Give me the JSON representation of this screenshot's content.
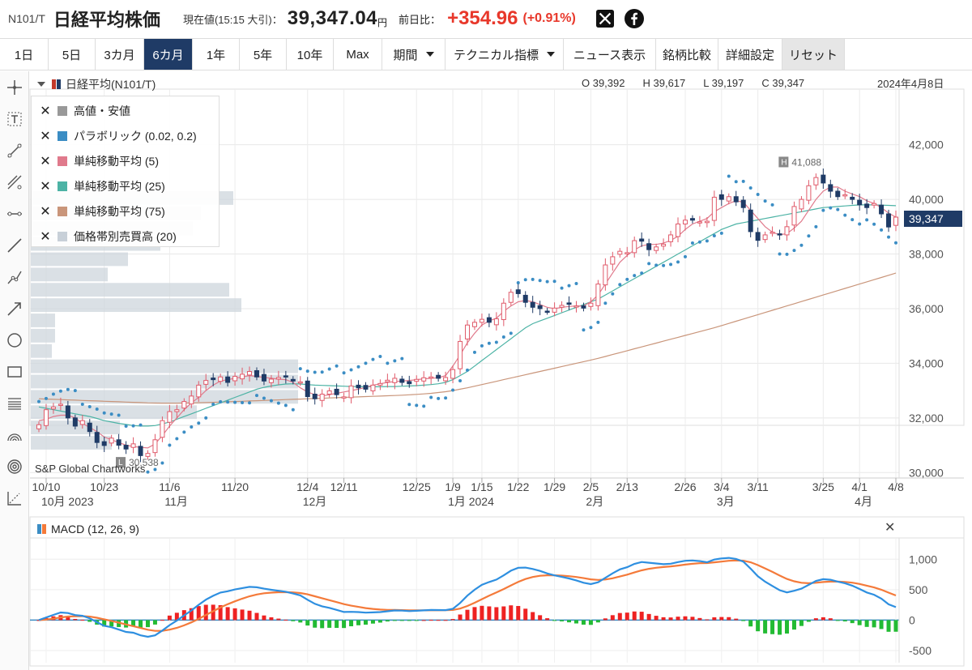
{
  "header": {
    "symbol": "N101/T",
    "title": "日経平均株価",
    "now_label": "現在値(15:15 大引)：",
    "price": "39,347.04",
    "unit": "円",
    "prev_label": "前日比：",
    "change": "+354.96",
    "change_pct": "(+0.91%)",
    "social": [
      "x-logo-icon",
      "facebook-icon"
    ]
  },
  "toolbar": {
    "ranges": [
      "1日",
      "5日",
      "3カ月",
      "6カ月",
      "1年",
      "5年",
      "10年",
      "Max"
    ],
    "active_range": "6カ月",
    "period_label": "期間",
    "tech_label": "テクニカル指標",
    "news_label": "ニュース表示",
    "compare_label": "銘柄比較",
    "settings_label": "詳細設定",
    "reset_label": "リセット"
  },
  "tools": [
    "crosshair-icon",
    "text-tool-icon",
    "trend-line-icon",
    "multi-line-icon",
    "horizontal-line-icon",
    "line-segment-icon",
    "polyline-icon",
    "arrow-icon",
    "circle-icon",
    "rectangle-icon",
    "fibonacci-icon",
    "arc-icon",
    "target-icon",
    "scale-icon"
  ],
  "main_chart": {
    "series_title": "日経平均(N101/T)",
    "ohlc": {
      "o": "O 39,392",
      "h": "H 39,617",
      "l": "L 39,197",
      "c": "C 39,347"
    },
    "date": "2024年4月8日",
    "watermark": "S&P Global Chartworks",
    "current_price_tag": "39,347",
    "high_marker": "41,088",
    "low_marker": "30,538",
    "legend": [
      {
        "label": "高値・安値",
        "color": "#999999"
      },
      {
        "label": "パラボリック (0.02, 0.2)",
        "color": "#3b8dc4"
      },
      {
        "label": "単純移動平均 (5)",
        "color": "#e07a8c"
      },
      {
        "label": "単純移動平均 (25)",
        "color": "#4cb3a5"
      },
      {
        "label": "単純移動平均 (75)",
        "color": "#c9957a"
      },
      {
        "label": "価格帯別売買高 (20)",
        "color": "#c8d0d8"
      }
    ]
  },
  "macd": {
    "title": "MACD (12, 26, 9)",
    "close_icon": "close-icon"
  },
  "chart_data": [
    {
      "type": "candlestick",
      "title": "日経平均(N101/T)",
      "y_ticks": [
        "30,000",
        "32,000",
        "34,000",
        "36,000",
        "38,000",
        "40,000",
        "42,000"
      ],
      "ylim": [
        29800,
        43800
      ],
      "x_ticks": [
        {
          "label": "10/10",
          "i": 1
        },
        {
          "label": "10/23",
          "i": 9
        },
        {
          "label": "11/6",
          "i": 18
        },
        {
          "label": "11/20",
          "i": 27
        },
        {
          "label": "12/4",
          "i": 37
        },
        {
          "label": "12/11",
          "i": 42
        },
        {
          "label": "12/25",
          "i": 52
        },
        {
          "label": "1/9",
          "i": 57
        },
        {
          "label": "1/15",
          "i": 61
        },
        {
          "label": "1/22",
          "i": 66
        },
        {
          "label": "1/29",
          "i": 71
        },
        {
          "label": "2/5",
          "i": 76
        },
        {
          "label": "2/13",
          "i": 81
        },
        {
          "label": "2/26",
          "i": 89
        },
        {
          "label": "3/4",
          "i": 94
        },
        {
          "label": "3/11",
          "i": 99
        },
        {
          "label": "3/25",
          "i": 108
        },
        {
          "label": "4/1",
          "i": 113
        },
        {
          "label": "4/8",
          "i": 118
        }
      ],
      "month_labels": [
        {
          "label": "10月 2023",
          "i": 1
        },
        {
          "label": "11月",
          "i": 18
        },
        {
          "label": "12月",
          "i": 37
        },
        {
          "label": "1月 2024",
          "i": 57
        },
        {
          "label": "2月",
          "i": 76
        },
        {
          "label": "3月",
          "i": 94
        },
        {
          "label": "4月",
          "i": 113
        }
      ],
      "close": [
        31750,
        32300,
        32400,
        32500,
        32000,
        31700,
        31900,
        31500,
        31100,
        30990,
        31260,
        31000,
        30860,
        31050,
        30620,
        30700,
        31200,
        31900,
        32230,
        32300,
        32600,
        32800,
        33200,
        33370,
        33400,
        33500,
        33300,
        33520,
        33600,
        33700,
        33500,
        33350,
        33420,
        33480,
        33500,
        33350,
        33320,
        32780,
        32700,
        32870,
        32990,
        32850,
        32770,
        33170,
        33100,
        33050,
        33200,
        33260,
        33380,
        33450,
        33300,
        33250,
        33410,
        33470,
        33500,
        33450,
        33480,
        33770,
        34800,
        35400,
        35500,
        35610,
        35500,
        35630,
        36200,
        36600,
        36550,
        36230,
        36050,
        36000,
        35900,
        36020,
        36120,
        36160,
        36100,
        36020,
        36200,
        36900,
        37600,
        37900,
        38100,
        38050,
        38490,
        38470,
        38160,
        38260,
        38360,
        38700,
        39100,
        39240,
        39240,
        39180,
        39200,
        40080,
        40000,
        40100,
        39910,
        39700,
        38820,
        38500,
        38700,
        38800,
        38700,
        39000,
        39740,
        40000,
        40500,
        40800,
        40600,
        40300,
        40100,
        40170,
        40000,
        39800,
        39700,
        39850,
        39470,
        38990,
        39350
      ],
      "ma5_approx": [
        31900,
        31950,
        32050,
        32100,
        32100,
        32000,
        31800,
        31650,
        31500,
        31300,
        31200,
        31100,
        31000,
        30950,
        30920,
        30900,
        31050,
        31350,
        31700,
        32000,
        32300,
        32550,
        32750,
        33000,
        33200,
        33350,
        33400,
        33450,
        33500,
        33550,
        33520,
        33480,
        33450,
        33420,
        33400,
        33300,
        33100,
        32950,
        32850,
        32800,
        32850,
        32900,
        32950,
        33000,
        33050,
        33120,
        33200,
        33250,
        33300,
        33330,
        33350,
        33370,
        33400,
        33430,
        33450,
        33470,
        33550,
        33900,
        34300,
        34750,
        35100,
        35400,
        35550,
        35650,
        35900,
        36100,
        36250,
        36300,
        36250,
        36150,
        36050,
        36000,
        36050,
        36080,
        36100,
        36100,
        36250,
        36500,
        36900,
        37300,
        37700,
        37950,
        38150,
        38300,
        38350,
        38350,
        38400,
        38500,
        38650,
        38900,
        39100,
        39200,
        39300,
        39550,
        39700,
        39850,
        39950,
        39900,
        39600,
        39300,
        39000,
        38800,
        38700,
        38750,
        38950,
        39200,
        39600,
        40000,
        40300,
        40450,
        40450,
        40300,
        40200,
        40100,
        39950,
        39850,
        39700,
        39500,
        39350
      ],
      "ma25_approx": [
        32400,
        32350,
        32300,
        32250,
        32200,
        32150,
        32100,
        32050,
        31980,
        31900,
        31850,
        31800,
        31760,
        31720,
        31700,
        31700,
        31720,
        31780,
        31850,
        31950,
        32050,
        32150,
        32250,
        32350,
        32450,
        32550,
        32650,
        32750,
        32850,
        32950,
        33050,
        33120,
        33170,
        33210,
        33240,
        33250,
        33240,
        33220,
        33200,
        33190,
        33180,
        33170,
        33160,
        33150,
        33150,
        33140,
        33140,
        33140,
        33150,
        33150,
        33160,
        33170,
        33180,
        33200,
        33220,
        33250,
        33300,
        33400,
        33550,
        33700,
        33900,
        34100,
        34300,
        34500,
        34700,
        34900,
        35100,
        35300,
        35450,
        35550,
        35650,
        35750,
        35850,
        35950,
        36050,
        36150,
        36250,
        36350,
        36500,
        36650,
        36800,
        36950,
        37100,
        37250,
        37400,
        37550,
        37700,
        37850,
        38000,
        38150,
        38300,
        38450,
        38600,
        38750,
        38900,
        39000,
        39100,
        39150,
        39200,
        39250,
        39300,
        39350,
        39400,
        39450,
        39500,
        39550,
        39600,
        39650,
        39700,
        39720,
        39740,
        39760,
        39780,
        39800,
        39800,
        39800,
        39790,
        39780,
        39770
      ],
      "ma75_approx": [
        32700,
        32690,
        32680,
        32670,
        32660,
        32650,
        32640,
        32630,
        32620,
        32610,
        32600,
        32590,
        32580,
        32570,
        32560,
        32550,
        32545,
        32540,
        32540,
        32540,
        32545,
        32550,
        32555,
        32560,
        32570,
        32580,
        32590,
        32600,
        32610,
        32620,
        32630,
        32640,
        32650,
        32660,
        32670,
        32680,
        32690,
        32700,
        32710,
        32720,
        32730,
        32740,
        32750,
        32760,
        32770,
        32780,
        32790,
        32800,
        32810,
        32820,
        32830,
        32845,
        32860,
        32880,
        32900,
        32930,
        32960,
        33000,
        33050,
        33100,
        33160,
        33220,
        33280,
        33340,
        33400,
        33460,
        33520,
        33580,
        33640,
        33700,
        33760,
        33820,
        33880,
        33940,
        34000,
        34060,
        34120,
        34180,
        34250,
        34320,
        34390,
        34460,
        34530,
        34600,
        34670,
        34740,
        34810,
        34880,
        34950,
        35020,
        35090,
        35160,
        35230,
        35300,
        35380,
        35460,
        35540,
        35620,
        35700,
        35780,
        35860,
        35940,
        36020,
        36100,
        36180,
        36260,
        36340,
        36420,
        36500,
        36580,
        36660,
        36740,
        36820,
        36900,
        36980,
        37060,
        37140,
        37220,
        37300
      ],
      "annotations": [
        {
          "text": "H 41,088",
          "value": 41088
        },
        {
          "text": "L 30,538",
          "value": 30538
        }
      ]
    },
    {
      "type": "macd",
      "title": "MACD (12, 26, 9)",
      "y_ticks": [
        "-500",
        "0",
        "500",
        "1,000"
      ],
      "ylim": [
        -700,
        1350
      ]
    }
  ]
}
